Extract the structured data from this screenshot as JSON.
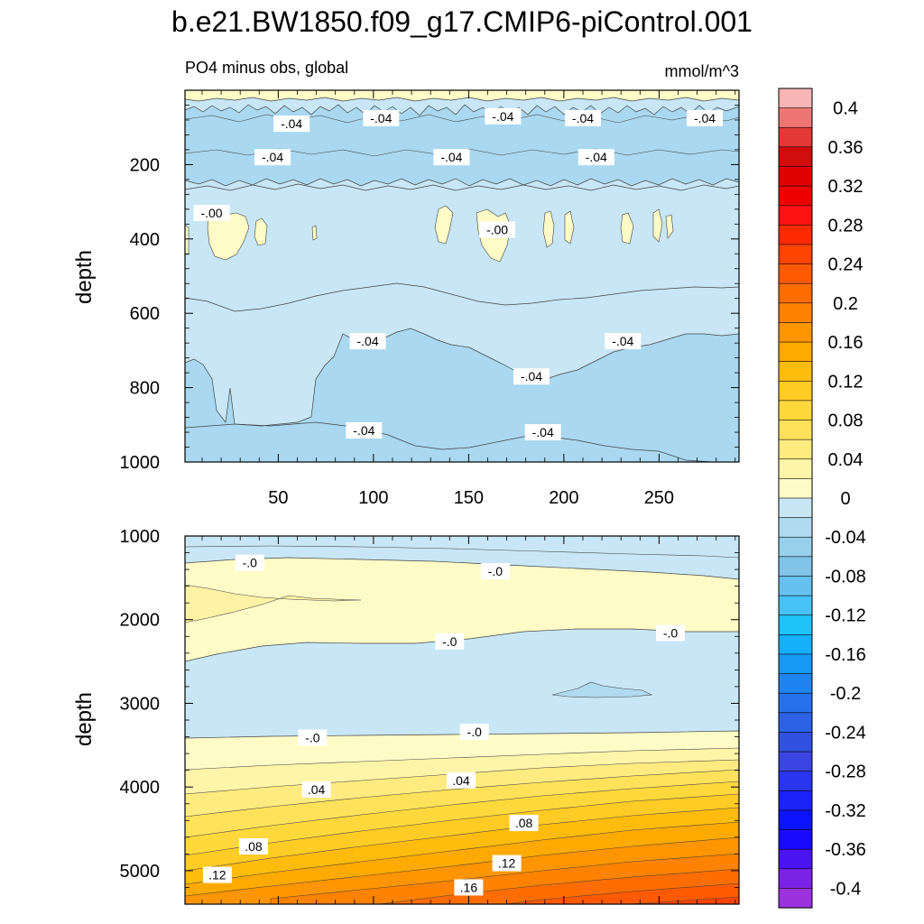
{
  "title": "b.e21.BW1850.f09_g17.CMIP6-piControl.001",
  "chart_data": [
    {
      "type": "heatmap",
      "panel": "upper",
      "subtitle_left": "PO4 minus obs, global",
      "subtitle_right": "mmol/m^3",
      "ylabel": "depth",
      "xlim": [
        1,
        292
      ],
      "ylim": [
        1000,
        0
      ],
      "xticks": [
        50,
        100,
        150,
        200,
        250
      ],
      "xtick_labels": [
        "50",
        "100",
        "150",
        "200",
        "250"
      ],
      "yticks": [
        200,
        400,
        600,
        800,
        1000
      ],
      "ytick_labels": [
        "200",
        "400",
        "600",
        "800",
        "1000"
      ],
      "contour_labels": [
        {
          "text": "-.04",
          "x": 57,
          "y": 90
        },
        {
          "text": "-.04",
          "x": 104,
          "y": 75
        },
        {
          "text": "-.04",
          "x": 168,
          "y": 70
        },
        {
          "text": "-.04",
          "x": 210,
          "y": 75
        },
        {
          "text": "-.04",
          "x": 274,
          "y": 75
        },
        {
          "text": "-.04",
          "x": 47,
          "y": 180
        },
        {
          "text": "-.04",
          "x": 141,
          "y": 180
        },
        {
          "text": "-.04",
          "x": 217,
          "y": 180
        },
        {
          "text": "-.00",
          "x": 15,
          "y": 330
        },
        {
          "text": "-.00",
          "x": 165,
          "y": 375
        },
        {
          "text": "-.04",
          "x": 97,
          "y": 675
        },
        {
          "text": "-.04",
          "x": 183,
          "y": 770
        },
        {
          "text": "-.04",
          "x": 231,
          "y": 675
        },
        {
          "text": "-.04",
          "x": 95,
          "y": 915
        },
        {
          "text": "-.04",
          "x": 189,
          "y": 920
        }
      ]
    },
    {
      "type": "heatmap",
      "panel": "lower",
      "ylabel": "depth",
      "xlim": [
        1,
        292
      ],
      "ylim": [
        5400,
        1000
      ],
      "yticks": [
        1000,
        2000,
        3000,
        4000,
        5000
      ],
      "ytick_labels": [
        "1000",
        "2000",
        "3000",
        "4000",
        "5000"
      ],
      "contour_labels": [
        {
          "text": "-.0",
          "x": 35,
          "y": 1320
        },
        {
          "text": "-.0",
          "x": 164,
          "y": 1420
        },
        {
          "text": "-.0",
          "x": 140,
          "y": 2260
        },
        {
          "text": "-.0",
          "x": 256,
          "y": 2160
        },
        {
          "text": "-.0",
          "x": 68,
          "y": 3410
        },
        {
          "text": "-.0",
          "x": 153,
          "y": 3340
        },
        {
          "text": ".04",
          "x": 70,
          "y": 4030
        },
        {
          "text": ".04",
          "x": 146,
          "y": 3920
        },
        {
          "text": ".08",
          "x": 37,
          "y": 4710
        },
        {
          "text": ".08",
          "x": 179,
          "y": 4430
        },
        {
          "text": ".12",
          "x": 18,
          "y": 5050
        },
        {
          "text": ".12",
          "x": 170,
          "y": 4910
        },
        {
          "text": ".16",
          "x": 150,
          "y": 5200
        }
      ]
    },
    {
      "type": "colorbar",
      "min": -0.42,
      "max": 0.42,
      "step": 0.02,
      "tick_labels": [
        "0.4",
        "0.36",
        "0.32",
        "0.28",
        "0.24",
        "0.2",
        "0.16",
        "0.12",
        "0.08",
        "0.04",
        "0",
        "-0.04",
        "-0.08",
        "-0.12",
        "-0.16",
        "-0.2",
        "-0.24",
        "-0.28",
        "-0.32",
        "-0.36",
        "-0.4"
      ],
      "colors_top_to_bottom": [
        "#f7b5b5",
        "#ef7575",
        "#e23838",
        "#d10d0d",
        "#de0000",
        "#ee0000",
        "#fe1212",
        "#ff2a00",
        "#ff4400",
        "#ff5a00",
        "#ff6d00",
        "#ff8200",
        "#ff9500",
        "#ffaa00",
        "#ffbc0d",
        "#ffcb25",
        "#ffd93c",
        "#ffe25a",
        "#ffeb80",
        "#fff5a8",
        "#fffbc7",
        "#c8e6f6",
        "#b0daf0",
        "#98cfeb",
        "#80c4e8",
        "#66c1f0",
        "#46c2f6",
        "#1ec3fa",
        "#14b0fa",
        "#1698f5",
        "#1f84ef",
        "#2572ea",
        "#2b62e6",
        "#3151e0",
        "#3a45e3",
        "#2a35ee",
        "#1a22f5",
        "#0c12fb",
        "#1a0afb",
        "#4a14f0",
        "#7a22e6",
        "#9a32e0"
      ]
    }
  ]
}
